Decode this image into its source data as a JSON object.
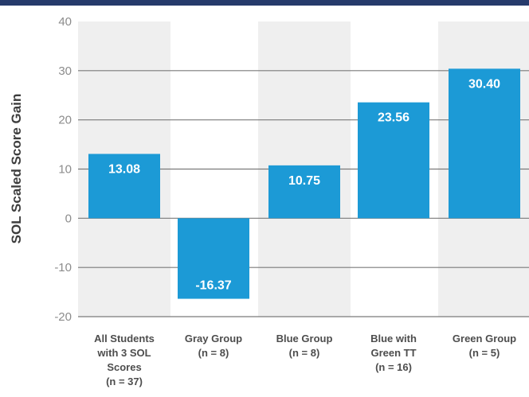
{
  "chart_data": {
    "type": "bar",
    "title": "",
    "xlabel": "",
    "ylabel": "SOL Scaled Score Gain",
    "ylim": [
      -20,
      40
    ],
    "yticks": [
      40,
      30,
      20,
      10,
      0,
      -10,
      -20
    ],
    "grid": true,
    "categories": [
      [
        "All Students",
        "with 3 SOL",
        "Scores",
        "(n = 37)"
      ],
      [
        "Gray Group",
        "(n = 8)"
      ],
      [
        "Blue Group",
        "(n = 8)"
      ],
      [
        "Blue with",
        "Green TT",
        "(n = 16)"
      ],
      [
        "Green Group",
        "(n = 5)"
      ]
    ],
    "values": [
      13.08,
      -16.37,
      10.75,
      23.56,
      30.4
    ],
    "value_labels": [
      "13.08",
      "-16.37",
      "10.75",
      "23.56",
      "30.40"
    ],
    "colors": {
      "bar": "#1c9ad6",
      "band": "#efefef",
      "grid": "#7a7a7a",
      "header_band": "#263a6b"
    }
  }
}
